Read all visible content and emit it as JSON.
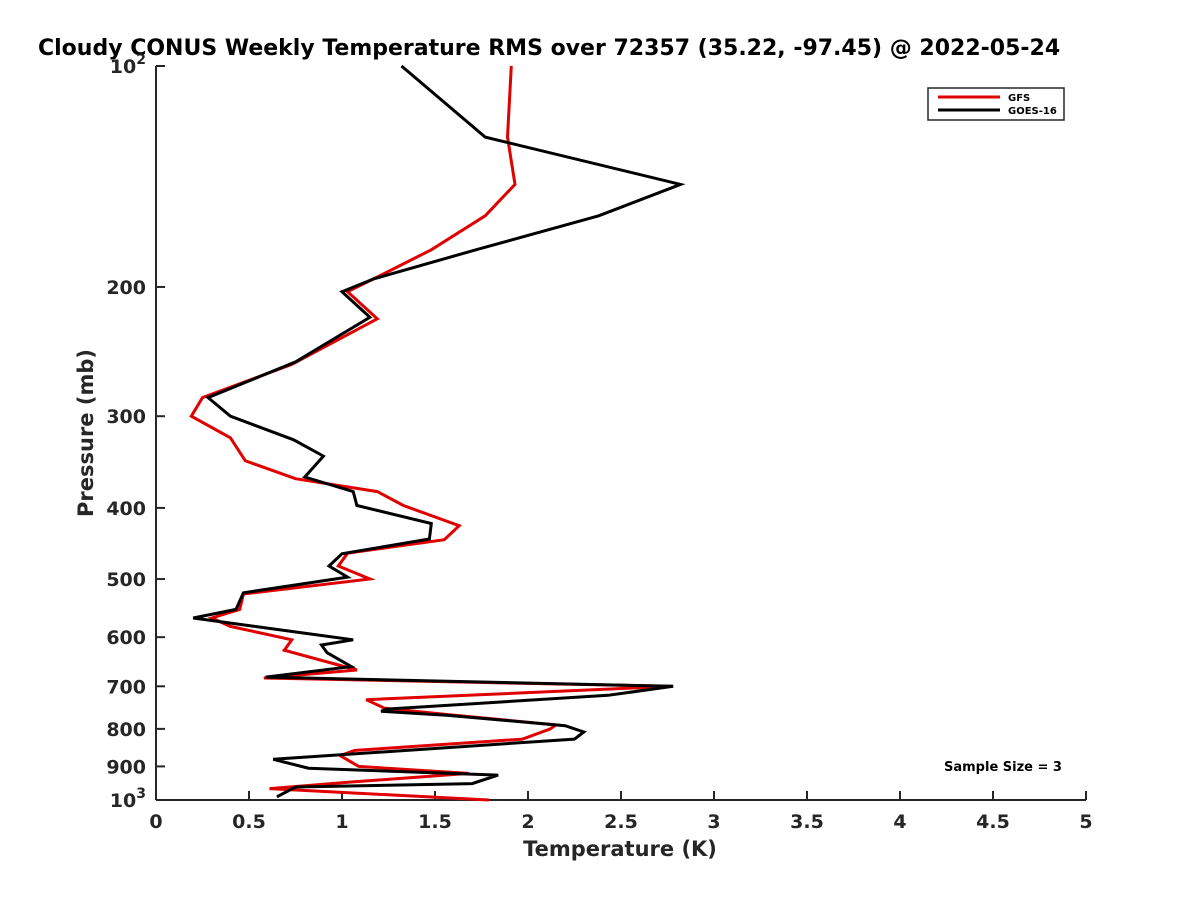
{
  "chart_data": {
    "type": "line",
    "title": "Cloudy CONUS Weekly Temperature RMS over 72357 (35.22, -97.45) @ 2022-05-24",
    "xlabel": "Temperature (K)",
    "ylabel": "Pressure (mb)",
    "xlim": [
      0,
      5
    ],
    "ylim": [
      100,
      1000
    ],
    "y_scale": "log",
    "y_reversed": true,
    "x_ticks": [
      {
        "value": 0,
        "label": "0"
      },
      {
        "value": 0.5,
        "label": "0.5"
      },
      {
        "value": 1,
        "label": "1"
      },
      {
        "value": 1.5,
        "label": "1.5"
      },
      {
        "value": 2,
        "label": "2"
      },
      {
        "value": 2.5,
        "label": "2.5"
      },
      {
        "value": 3,
        "label": "3"
      },
      {
        "value": 3.5,
        "label": "3.5"
      },
      {
        "value": 4,
        "label": "4"
      },
      {
        "value": 4.5,
        "label": "4.5"
      },
      {
        "value": 5,
        "label": "5"
      }
    ],
    "y_ticks": [
      {
        "value": 100,
        "base": "10",
        "exp": "2"
      },
      {
        "value": 200,
        "label": "200"
      },
      {
        "value": 300,
        "label": "300"
      },
      {
        "value": 400,
        "label": "400"
      },
      {
        "value": 500,
        "label": "500"
      },
      {
        "value": 600,
        "label": "600"
      },
      {
        "value": 700,
        "label": "700"
      },
      {
        "value": 800,
        "label": "800"
      },
      {
        "value": 900,
        "label": "900"
      },
      {
        "value": 1000,
        "base": "10",
        "exp": "3"
      }
    ],
    "grid": false,
    "legend_position": "top-right",
    "annotation": "Sample Size = 3",
    "series": [
      {
        "name": "GFS",
        "color": "#e00000",
        "points": [
          [
            1.91,
            100
          ],
          [
            1.89,
            125
          ],
          [
            1.93,
            145
          ],
          [
            1.77,
            160
          ],
          [
            1.48,
            178
          ],
          [
            1.17,
            195
          ],
          [
            1.03,
            203
          ],
          [
            1.19,
            221
          ],
          [
            0.73,
            255
          ],
          [
            0.25,
            283
          ],
          [
            0.19,
            300
          ],
          [
            0.4,
            321
          ],
          [
            0.48,
            345
          ],
          [
            0.75,
            365
          ],
          [
            1.19,
            380
          ],
          [
            1.33,
            397
          ],
          [
            1.63,
            423
          ],
          [
            1.55,
            442
          ],
          [
            1.03,
            461
          ],
          [
            0.98,
            480
          ],
          [
            1.15,
            500
          ],
          [
            0.47,
            524
          ],
          [
            0.45,
            550
          ],
          [
            0.3,
            565
          ],
          [
            0.4,
            580
          ],
          [
            0.73,
            605
          ],
          [
            0.69,
            625
          ],
          [
            1.08,
            665
          ],
          [
            0.58,
            682
          ],
          [
            2.78,
            700
          ],
          [
            1.13,
            730
          ],
          [
            1.23,
            750
          ],
          [
            1.57,
            765
          ],
          [
            2.15,
            790
          ],
          [
            2.12,
            800
          ],
          [
            1.97,
            826
          ],
          [
            1.07,
            856
          ],
          [
            0.99,
            870
          ],
          [
            1.09,
            900
          ],
          [
            1.68,
            920
          ],
          [
            1.05,
            945
          ],
          [
            0.61,
            965
          ],
          [
            1.79,
            1000
          ]
        ]
      },
      {
        "name": "GOES-16",
        "color": "#000000",
        "points": [
          [
            1.32,
            100
          ],
          [
            1.77,
            125
          ],
          [
            2.82,
            145
          ],
          [
            2.38,
            160
          ],
          [
            1.72,
            178
          ],
          [
            1.17,
            195
          ],
          [
            1.0,
            203
          ],
          [
            1.15,
            220
          ],
          [
            0.75,
            253
          ],
          [
            0.28,
            283
          ],
          [
            0.4,
            300
          ],
          [
            0.74,
            323
          ],
          [
            0.9,
            340
          ],
          [
            0.8,
            363
          ],
          [
            1.06,
            380
          ],
          [
            1.08,
            397
          ],
          [
            1.48,
            420
          ],
          [
            1.47,
            441
          ],
          [
            1.0,
            462
          ],
          [
            0.93,
            480
          ],
          [
            1.03,
            497
          ],
          [
            0.47,
            522
          ],
          [
            0.43,
            550
          ],
          [
            0.2,
            565
          ],
          [
            0.53,
            580
          ],
          [
            1.06,
            605
          ],
          [
            0.89,
            615
          ],
          [
            0.92,
            630
          ],
          [
            1.05,
            658
          ],
          [
            0.59,
            680
          ],
          [
            2.78,
            700
          ],
          [
            2.43,
            720
          ],
          [
            1.24,
            752
          ],
          [
            1.21,
            757
          ],
          [
            1.57,
            767
          ],
          [
            2.2,
            792
          ],
          [
            2.3,
            808
          ],
          [
            2.25,
            826
          ],
          [
            0.63,
            880
          ],
          [
            0.82,
            905
          ],
          [
            1.84,
            925
          ],
          [
            1.7,
            950
          ],
          [
            0.75,
            960
          ],
          [
            0.65,
            990
          ]
        ]
      }
    ]
  }
}
